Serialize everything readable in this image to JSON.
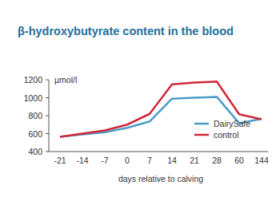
{
  "chart_data": {
    "type": "line",
    "title": "β-hydroxybutyrate content in the blood",
    "y_label": "µmol/l",
    "x_label": "days relative to calving",
    "categories": [
      "-21",
      "-14",
      "-7",
      "0",
      "7",
      "14",
      "21",
      "28",
      "60",
      "144"
    ],
    "series": [
      {
        "name": "DairySafe",
        "color": "#4a9cc7",
        "values": [
          565,
          590,
          615,
          665,
          735,
          990,
          1000,
          1010,
          715,
          765
        ]
      },
      {
        "name": "control",
        "color": "#d0283a",
        "values": [
          565,
          600,
          635,
          700,
          820,
          1150,
          1170,
          1180,
          815,
          760
        ]
      }
    ],
    "ylim": [
      400,
      1200
    ],
    "yticks": [
      400,
      600,
      800,
      1000,
      1200
    ],
    "grid": false,
    "legend": "lower right"
  }
}
